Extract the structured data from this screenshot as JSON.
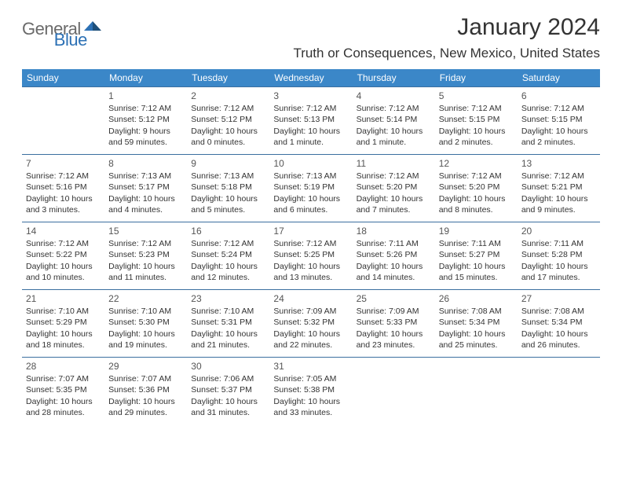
{
  "logo": {
    "text1": "General",
    "text2": "Blue"
  },
  "title": "January 2024",
  "location": "Truth or Consequences, New Mexico, United States",
  "colors": {
    "header_bg": "#3b87c8",
    "header_text": "#ffffff",
    "row_border": "#3b6fa0",
    "logo_gray": "#6a6a6a",
    "logo_blue": "#2d71b5",
    "body_text": "#333333"
  },
  "weekdays": [
    "Sunday",
    "Monday",
    "Tuesday",
    "Wednesday",
    "Thursday",
    "Friday",
    "Saturday"
  ],
  "weeks": [
    [
      null,
      {
        "d": "1",
        "sr": "Sunrise: 7:12 AM",
        "ss": "Sunset: 5:12 PM",
        "dl1": "Daylight: 9 hours",
        "dl2": "and 59 minutes."
      },
      {
        "d": "2",
        "sr": "Sunrise: 7:12 AM",
        "ss": "Sunset: 5:12 PM",
        "dl1": "Daylight: 10 hours",
        "dl2": "and 0 minutes."
      },
      {
        "d": "3",
        "sr": "Sunrise: 7:12 AM",
        "ss": "Sunset: 5:13 PM",
        "dl1": "Daylight: 10 hours",
        "dl2": "and 1 minute."
      },
      {
        "d": "4",
        "sr": "Sunrise: 7:12 AM",
        "ss": "Sunset: 5:14 PM",
        "dl1": "Daylight: 10 hours",
        "dl2": "and 1 minute."
      },
      {
        "d": "5",
        "sr": "Sunrise: 7:12 AM",
        "ss": "Sunset: 5:15 PM",
        "dl1": "Daylight: 10 hours",
        "dl2": "and 2 minutes."
      },
      {
        "d": "6",
        "sr": "Sunrise: 7:12 AM",
        "ss": "Sunset: 5:15 PM",
        "dl1": "Daylight: 10 hours",
        "dl2": "and 2 minutes."
      }
    ],
    [
      {
        "d": "7",
        "sr": "Sunrise: 7:12 AM",
        "ss": "Sunset: 5:16 PM",
        "dl1": "Daylight: 10 hours",
        "dl2": "and 3 minutes."
      },
      {
        "d": "8",
        "sr": "Sunrise: 7:13 AM",
        "ss": "Sunset: 5:17 PM",
        "dl1": "Daylight: 10 hours",
        "dl2": "and 4 minutes."
      },
      {
        "d": "9",
        "sr": "Sunrise: 7:13 AM",
        "ss": "Sunset: 5:18 PM",
        "dl1": "Daylight: 10 hours",
        "dl2": "and 5 minutes."
      },
      {
        "d": "10",
        "sr": "Sunrise: 7:13 AM",
        "ss": "Sunset: 5:19 PM",
        "dl1": "Daylight: 10 hours",
        "dl2": "and 6 minutes."
      },
      {
        "d": "11",
        "sr": "Sunrise: 7:12 AM",
        "ss": "Sunset: 5:20 PM",
        "dl1": "Daylight: 10 hours",
        "dl2": "and 7 minutes."
      },
      {
        "d": "12",
        "sr": "Sunrise: 7:12 AM",
        "ss": "Sunset: 5:20 PM",
        "dl1": "Daylight: 10 hours",
        "dl2": "and 8 minutes."
      },
      {
        "d": "13",
        "sr": "Sunrise: 7:12 AM",
        "ss": "Sunset: 5:21 PM",
        "dl1": "Daylight: 10 hours",
        "dl2": "and 9 minutes."
      }
    ],
    [
      {
        "d": "14",
        "sr": "Sunrise: 7:12 AM",
        "ss": "Sunset: 5:22 PM",
        "dl1": "Daylight: 10 hours",
        "dl2": "and 10 minutes."
      },
      {
        "d": "15",
        "sr": "Sunrise: 7:12 AM",
        "ss": "Sunset: 5:23 PM",
        "dl1": "Daylight: 10 hours",
        "dl2": "and 11 minutes."
      },
      {
        "d": "16",
        "sr": "Sunrise: 7:12 AM",
        "ss": "Sunset: 5:24 PM",
        "dl1": "Daylight: 10 hours",
        "dl2": "and 12 minutes."
      },
      {
        "d": "17",
        "sr": "Sunrise: 7:12 AM",
        "ss": "Sunset: 5:25 PM",
        "dl1": "Daylight: 10 hours",
        "dl2": "and 13 minutes."
      },
      {
        "d": "18",
        "sr": "Sunrise: 7:11 AM",
        "ss": "Sunset: 5:26 PM",
        "dl1": "Daylight: 10 hours",
        "dl2": "and 14 minutes."
      },
      {
        "d": "19",
        "sr": "Sunrise: 7:11 AM",
        "ss": "Sunset: 5:27 PM",
        "dl1": "Daylight: 10 hours",
        "dl2": "and 15 minutes."
      },
      {
        "d": "20",
        "sr": "Sunrise: 7:11 AM",
        "ss": "Sunset: 5:28 PM",
        "dl1": "Daylight: 10 hours",
        "dl2": "and 17 minutes."
      }
    ],
    [
      {
        "d": "21",
        "sr": "Sunrise: 7:10 AM",
        "ss": "Sunset: 5:29 PM",
        "dl1": "Daylight: 10 hours",
        "dl2": "and 18 minutes."
      },
      {
        "d": "22",
        "sr": "Sunrise: 7:10 AM",
        "ss": "Sunset: 5:30 PM",
        "dl1": "Daylight: 10 hours",
        "dl2": "and 19 minutes."
      },
      {
        "d": "23",
        "sr": "Sunrise: 7:10 AM",
        "ss": "Sunset: 5:31 PM",
        "dl1": "Daylight: 10 hours",
        "dl2": "and 21 minutes."
      },
      {
        "d": "24",
        "sr": "Sunrise: 7:09 AM",
        "ss": "Sunset: 5:32 PM",
        "dl1": "Daylight: 10 hours",
        "dl2": "and 22 minutes."
      },
      {
        "d": "25",
        "sr": "Sunrise: 7:09 AM",
        "ss": "Sunset: 5:33 PM",
        "dl1": "Daylight: 10 hours",
        "dl2": "and 23 minutes."
      },
      {
        "d": "26",
        "sr": "Sunrise: 7:08 AM",
        "ss": "Sunset: 5:34 PM",
        "dl1": "Daylight: 10 hours",
        "dl2": "and 25 minutes."
      },
      {
        "d": "27",
        "sr": "Sunrise: 7:08 AM",
        "ss": "Sunset: 5:34 PM",
        "dl1": "Daylight: 10 hours",
        "dl2": "and 26 minutes."
      }
    ],
    [
      {
        "d": "28",
        "sr": "Sunrise: 7:07 AM",
        "ss": "Sunset: 5:35 PM",
        "dl1": "Daylight: 10 hours",
        "dl2": "and 28 minutes."
      },
      {
        "d": "29",
        "sr": "Sunrise: 7:07 AM",
        "ss": "Sunset: 5:36 PM",
        "dl1": "Daylight: 10 hours",
        "dl2": "and 29 minutes."
      },
      {
        "d": "30",
        "sr": "Sunrise: 7:06 AM",
        "ss": "Sunset: 5:37 PM",
        "dl1": "Daylight: 10 hours",
        "dl2": "and 31 minutes."
      },
      {
        "d": "31",
        "sr": "Sunrise: 7:05 AM",
        "ss": "Sunset: 5:38 PM",
        "dl1": "Daylight: 10 hours",
        "dl2": "and 33 minutes."
      },
      null,
      null,
      null
    ]
  ]
}
